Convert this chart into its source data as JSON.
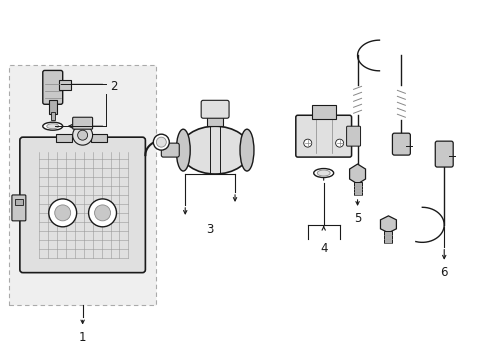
{
  "bg_color": "#ffffff",
  "lc": "#1a1a1a",
  "gray1": "#c8c8c8",
  "gray2": "#e0e0e0",
  "gray3": "#b0b0b0",
  "box_bg": "#f0f0f0",
  "figsize": [
    4.89,
    3.6
  ],
  "dpi": 100,
  "font_size": 8.5
}
